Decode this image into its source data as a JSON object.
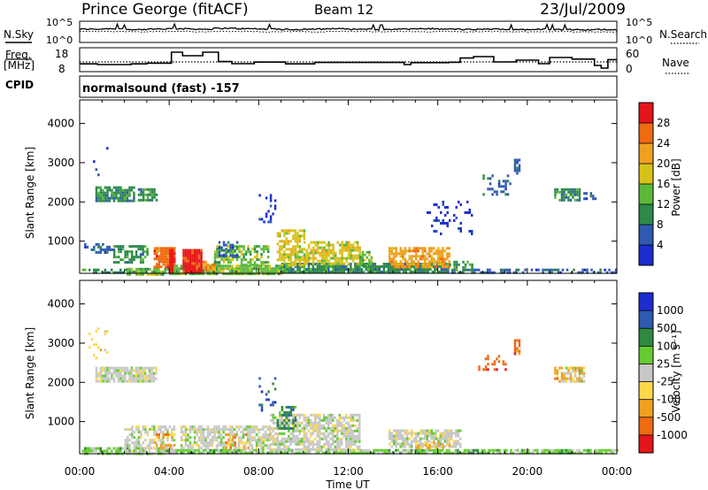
{
  "header": {
    "station": "Prince George (fitACF)",
    "beam": "Beam 12",
    "date": "23/Jul/2009"
  },
  "noise_panel": {
    "left_label": "N.Sky",
    "right_label": "N.Search",
    "top_tick": "10^5",
    "bottom_tick": "10^0"
  },
  "freq_panel": {
    "left_label_1": "Freq.",
    "left_label_2": "[MHz]",
    "right_label": "Nave",
    "left_ticks": [
      "18",
      "8"
    ],
    "right_ticks": [
      "60",
      "0"
    ]
  },
  "cpid": {
    "label": "CPID",
    "program": "normalsound (fast) -157"
  },
  "colors": {
    "power": [
      "#1c2ccf",
      "#2f5ab0",
      "#2e8a4a",
      "#5cb83a",
      "#d8c21a",
      "#f0a020",
      "#ef6a12",
      "#e4161b"
    ],
    "velocity": [
      "#e4161b",
      "#ef6a12",
      "#f0a020",
      "#ffd84a",
      "#c8c8c8",
      "#66cc33",
      "#2f8a40",
      "#2f5ab0",
      "#1c2ccf"
    ]
  },
  "chart_data": [
    {
      "type": "line",
      "name": "noise",
      "ylabel": "N.Sky",
      "y_scale": "log",
      "x_range": [
        0,
        24
      ],
      "x": [
        0,
        0.5,
        1,
        2,
        3,
        4,
        5,
        6,
        7,
        8,
        9,
        10,
        11,
        12,
        13,
        14,
        15,
        16,
        17,
        18,
        19,
        20,
        21,
        22,
        23,
        24
      ],
      "sky_values": [
        3.2,
        3.3,
        3.1,
        3.2,
        3.3,
        3.2,
        3.4,
        3.3,
        3.2,
        3.1,
        3.2,
        3.3,
        3.2,
        3.1,
        3.2,
        3.3,
        3.2,
        3.1,
        3.2,
        3.1,
        3.2,
        3.1,
        3.0,
        3.1,
        3.0,
        3.0
      ],
      "search_values": [
        2.6,
        2.6,
        2.5,
        2.6,
        2.6,
        2.5,
        2.6,
        2.6,
        2.5,
        2.6,
        2.5,
        2.6,
        2.6,
        2.5,
        2.6,
        2.5,
        2.6,
        2.5,
        2.6,
        2.5,
        2.5,
        2.6,
        2.5,
        2.5,
        2.5,
        2.5
      ]
    },
    {
      "type": "line",
      "name": "frequency",
      "ylabel": "Freq. [MHz]",
      "ylim": [
        8,
        18
      ],
      "x_range": [
        0,
        24
      ],
      "freq_steps": [
        [
          0,
          10.9
        ],
        [
          0.8,
          10.9
        ],
        [
          0.8,
          10.5
        ],
        [
          2.3,
          10.5
        ],
        [
          2.3,
          10.9
        ],
        [
          3.0,
          10.9
        ],
        [
          3.0,
          11.3
        ],
        [
          4.1,
          11.3
        ],
        [
          4.1,
          17.5
        ],
        [
          4.6,
          17.5
        ],
        [
          4.6,
          15.5
        ],
        [
          5.5,
          15.5
        ],
        [
          5.5,
          17.5
        ],
        [
          6.2,
          17.5
        ],
        [
          6.2,
          12.2
        ],
        [
          6.8,
          12.2
        ],
        [
          6.8,
          11.0
        ],
        [
          7.8,
          11.0
        ],
        [
          7.8,
          11.9
        ],
        [
          9.2,
          11.9
        ],
        [
          9.2,
          10.9
        ],
        [
          10.5,
          10.9
        ],
        [
          10.5,
          11.7
        ],
        [
          14.5,
          11.7
        ],
        [
          14.5,
          10.5
        ],
        [
          14.8,
          10.5
        ],
        [
          14.8,
          11.6
        ],
        [
          16.5,
          11.6
        ],
        [
          16.5,
          11.8
        ],
        [
          17.0,
          11.8
        ],
        [
          17.0,
          14.2
        ],
        [
          17.6,
          14.2
        ],
        [
          17.6,
          15.0
        ],
        [
          18.5,
          15.0
        ],
        [
          18.5,
          12.0
        ],
        [
          19.5,
          12.0
        ],
        [
          19.5,
          13.0
        ],
        [
          20.5,
          13.0
        ],
        [
          20.5,
          11.0
        ],
        [
          21.0,
          11.0
        ],
        [
          21.0,
          14.5
        ],
        [
          22.0,
          14.5
        ],
        [
          22.0,
          13.6
        ],
        [
          23.0,
          13.6
        ],
        [
          23.0,
          10.0
        ],
        [
          23.3,
          10.0
        ],
        [
          23.3,
          8.5
        ],
        [
          23.6,
          8.5
        ],
        [
          23.6,
          13.3
        ],
        [
          24,
          13.3
        ]
      ],
      "nave_level": 12.0
    },
    {
      "type": "heatmap",
      "name": "power",
      "title": "",
      "xlabel": "",
      "ylabel": "Slant Range [km]",
      "colorbar_label": "Power [dB]",
      "colorbar_ticks": [
        "28",
        "24",
        "20",
        "16",
        "12",
        "8",
        "4"
      ],
      "xlim": [
        0,
        24
      ],
      "ylim": [
        180,
        4600
      ],
      "y_ticks": [
        1000,
        2000,
        3000,
        4000
      ],
      "y_tick_labels": [
        "1000",
        "2000",
        "3000",
        "4000"
      ],
      "blobs": [
        [
          0.1,
          2.1,
          180,
          300,
          2,
          0.6
        ],
        [
          2.1,
          4.0,
          180,
          320,
          3,
          0.8
        ],
        [
          4.0,
          9.0,
          180,
          400,
          3,
          0.9
        ],
        [
          9.0,
          16.5,
          180,
          450,
          2,
          0.9
        ],
        [
          16.5,
          24,
          180,
          300,
          1,
          0.5
        ],
        [
          0.2,
          1.5,
          700,
          950,
          1,
          0.5
        ],
        [
          1.5,
          3.0,
          450,
          900,
          2,
          0.6
        ],
        [
          3.3,
          4.2,
          350,
          850,
          6,
          0.9
        ],
        [
          4.0,
          4.1,
          200,
          800,
          7,
          1
        ],
        [
          4.6,
          5.4,
          200,
          800,
          7,
          1
        ],
        [
          5.5,
          6.0,
          250,
          500,
          5,
          0.8
        ],
        [
          6.0,
          8.4,
          400,
          900,
          3,
          0.6
        ],
        [
          6.2,
          7.0,
          600,
          1000,
          1,
          0.5
        ],
        [
          8.8,
          10.0,
          400,
          1300,
          4,
          0.6
        ],
        [
          10.0,
          12.5,
          400,
          1000,
          4,
          0.7
        ],
        [
          12.5,
          13.0,
          350,
          750,
          3,
          0.6
        ],
        [
          13.8,
          16.5,
          350,
          850,
          5,
          0.7
        ],
        [
          16.5,
          17.5,
          250,
          500,
          2,
          0.5
        ],
        [
          0.7,
          2.4,
          2050,
          2400,
          2,
          0.8
        ],
        [
          2.6,
          3.4,
          2050,
          2350,
          2,
          0.7
        ],
        [
          21.2,
          22.3,
          2050,
          2350,
          2,
          0.8
        ],
        [
          22.5,
          23.0,
          2050,
          2250,
          1,
          0.6
        ],
        [
          19.4,
          19.6,
          2700,
          3100,
          1,
          0.8
        ],
        [
          18.0,
          19.2,
          2200,
          2700,
          1,
          0.2
        ],
        [
          8.0,
          8.7,
          1300,
          2200,
          0,
          0.2
        ],
        [
          0.4,
          1.2,
          2600,
          3400,
          0,
          0.1
        ],
        [
          15.5,
          17.5,
          1200,
          2100,
          0,
          0.12
        ]
      ]
    },
    {
      "type": "heatmap",
      "name": "velocity",
      "title": "",
      "xlabel": "Time UT",
      "ylabel": "Slant Range [km]",
      "colorbar_label": "Velocity [m s⁻¹]",
      "colorbar_ticks": [
        "1000",
        "500",
        "100",
        "25",
        "-25",
        "-100",
        "-500",
        "-1000"
      ],
      "xlim": [
        0,
        24
      ],
      "ylim": [
        180,
        4600
      ],
      "y_ticks": [
        1000,
        2000,
        3000,
        4000
      ],
      "y_tick_labels": [
        "1000",
        "2000",
        "3000",
        "4000"
      ],
      "x_ticks": [
        0,
        4,
        8,
        12,
        16,
        20,
        24
      ],
      "x_tick_labels": [
        "00:00",
        "04:00",
        "08:00",
        "12:00",
        "16:00",
        "20:00",
        "00:00"
      ],
      "blobs": [
        [
          0.1,
          4.0,
          180,
          350,
          5,
          0.6
        ],
        [
          4.0,
          24,
          180,
          300,
          5,
          0.8
        ],
        [
          2.0,
          4.2,
          200,
          900,
          4,
          0.6
        ],
        [
          3.3,
          4.2,
          300,
          700,
          2,
          0.4
        ],
        [
          4.5,
          8.5,
          300,
          900,
          4,
          0.7
        ],
        [
          6.5,
          7.5,
          300,
          700,
          2,
          0.25
        ],
        [
          8.5,
          12.5,
          300,
          1200,
          4,
          0.75
        ],
        [
          8.8,
          9.6,
          800,
          1400,
          6,
          0.5
        ],
        [
          13.8,
          17.0,
          350,
          800,
          4,
          0.7
        ],
        [
          15.0,
          16.5,
          300,
          500,
          2,
          0.4
        ],
        [
          0.7,
          3.4,
          2050,
          2400,
          4,
          0.85
        ],
        [
          21.2,
          22.5,
          2050,
          2400,
          2,
          0.6
        ],
        [
          21.5,
          22.5,
          2050,
          2400,
          4,
          0.4
        ],
        [
          19.4,
          19.6,
          2700,
          3100,
          1,
          0.8
        ],
        [
          17.8,
          19.0,
          2300,
          2700,
          1,
          0.25
        ],
        [
          0.4,
          1.2,
          2600,
          3400,
          3,
          0.12
        ],
        [
          8.0,
          8.7,
          1300,
          2200,
          7,
          0.15
        ]
      ]
    }
  ]
}
